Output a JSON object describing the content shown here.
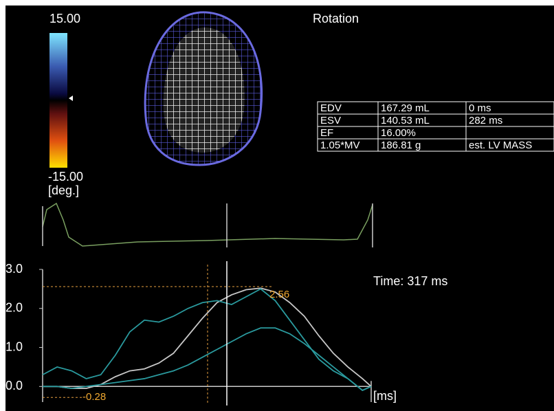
{
  "title": "Rotation",
  "colorbar": {
    "max_label": "15.00",
    "min_label": "-15.00",
    "unit": "[deg.]"
  },
  "table": {
    "rows": [
      [
        "EDV",
        "167.29 mL",
        "0 ms"
      ],
      [
        "ESV",
        "140.53 mL",
        "282 ms"
      ],
      [
        "EF",
        "16.00%"
      ],
      [
        "1.05*MV",
        "186.81 g",
        "est. LV MASS"
      ]
    ]
  },
  "time_label": "Time: 317 ms",
  "chart_data": {
    "type": "line",
    "x": [
      0,
      25,
      50,
      75,
      100,
      125,
      150,
      175,
      200,
      225,
      250,
      275,
      300,
      325,
      350,
      375,
      400,
      425,
      450,
      475,
      500,
      525,
      550,
      565
    ],
    "xlim": [
      0,
      565
    ],
    "x_label": "[ms]",
    "ylim": [
      -0.4,
      3.0
    ],
    "yticks": [
      {
        "value": 0,
        "label": "0.0"
      },
      {
        "value": 1,
        "label": "1.0"
      },
      {
        "value": 2,
        "label": "2.0"
      },
      {
        "value": 3,
        "label": "3.0"
      }
    ],
    "series": [
      {
        "color": "#c8c8c8",
        "values": [
          0,
          0,
          -0.05,
          -0.05,
          0.05,
          0.25,
          0.4,
          0.45,
          0.6,
          0.85,
          1.3,
          1.75,
          2.15,
          2.35,
          2.48,
          2.52,
          2.42,
          2.15,
          1.8,
          1.3,
          0.85,
          0.5,
          0.2,
          0
        ]
      },
      {
        "color": "#2a9a9e",
        "values": [
          0.3,
          0.5,
          0.4,
          0.2,
          0.3,
          0.8,
          1.4,
          1.7,
          1.65,
          1.8,
          2.0,
          2.15,
          2.2,
          2.1,
          2.3,
          2.5,
          2.2,
          1.7,
          1.2,
          0.7,
          0.4,
          0.2,
          -0.1,
          0
        ]
      },
      {
        "color": "#2a9a9e",
        "values": [
          0,
          0,
          -0.05,
          0,
          0.05,
          0.1,
          0.15,
          0.2,
          0.3,
          0.4,
          0.55,
          0.75,
          0.95,
          1.15,
          1.35,
          1.5,
          1.5,
          1.35,
          1.1,
          0.8,
          0.5,
          0.2,
          -0.1,
          0
        ]
      }
    ],
    "max_marker": 2.56,
    "min_marker": -0.28
  }
}
